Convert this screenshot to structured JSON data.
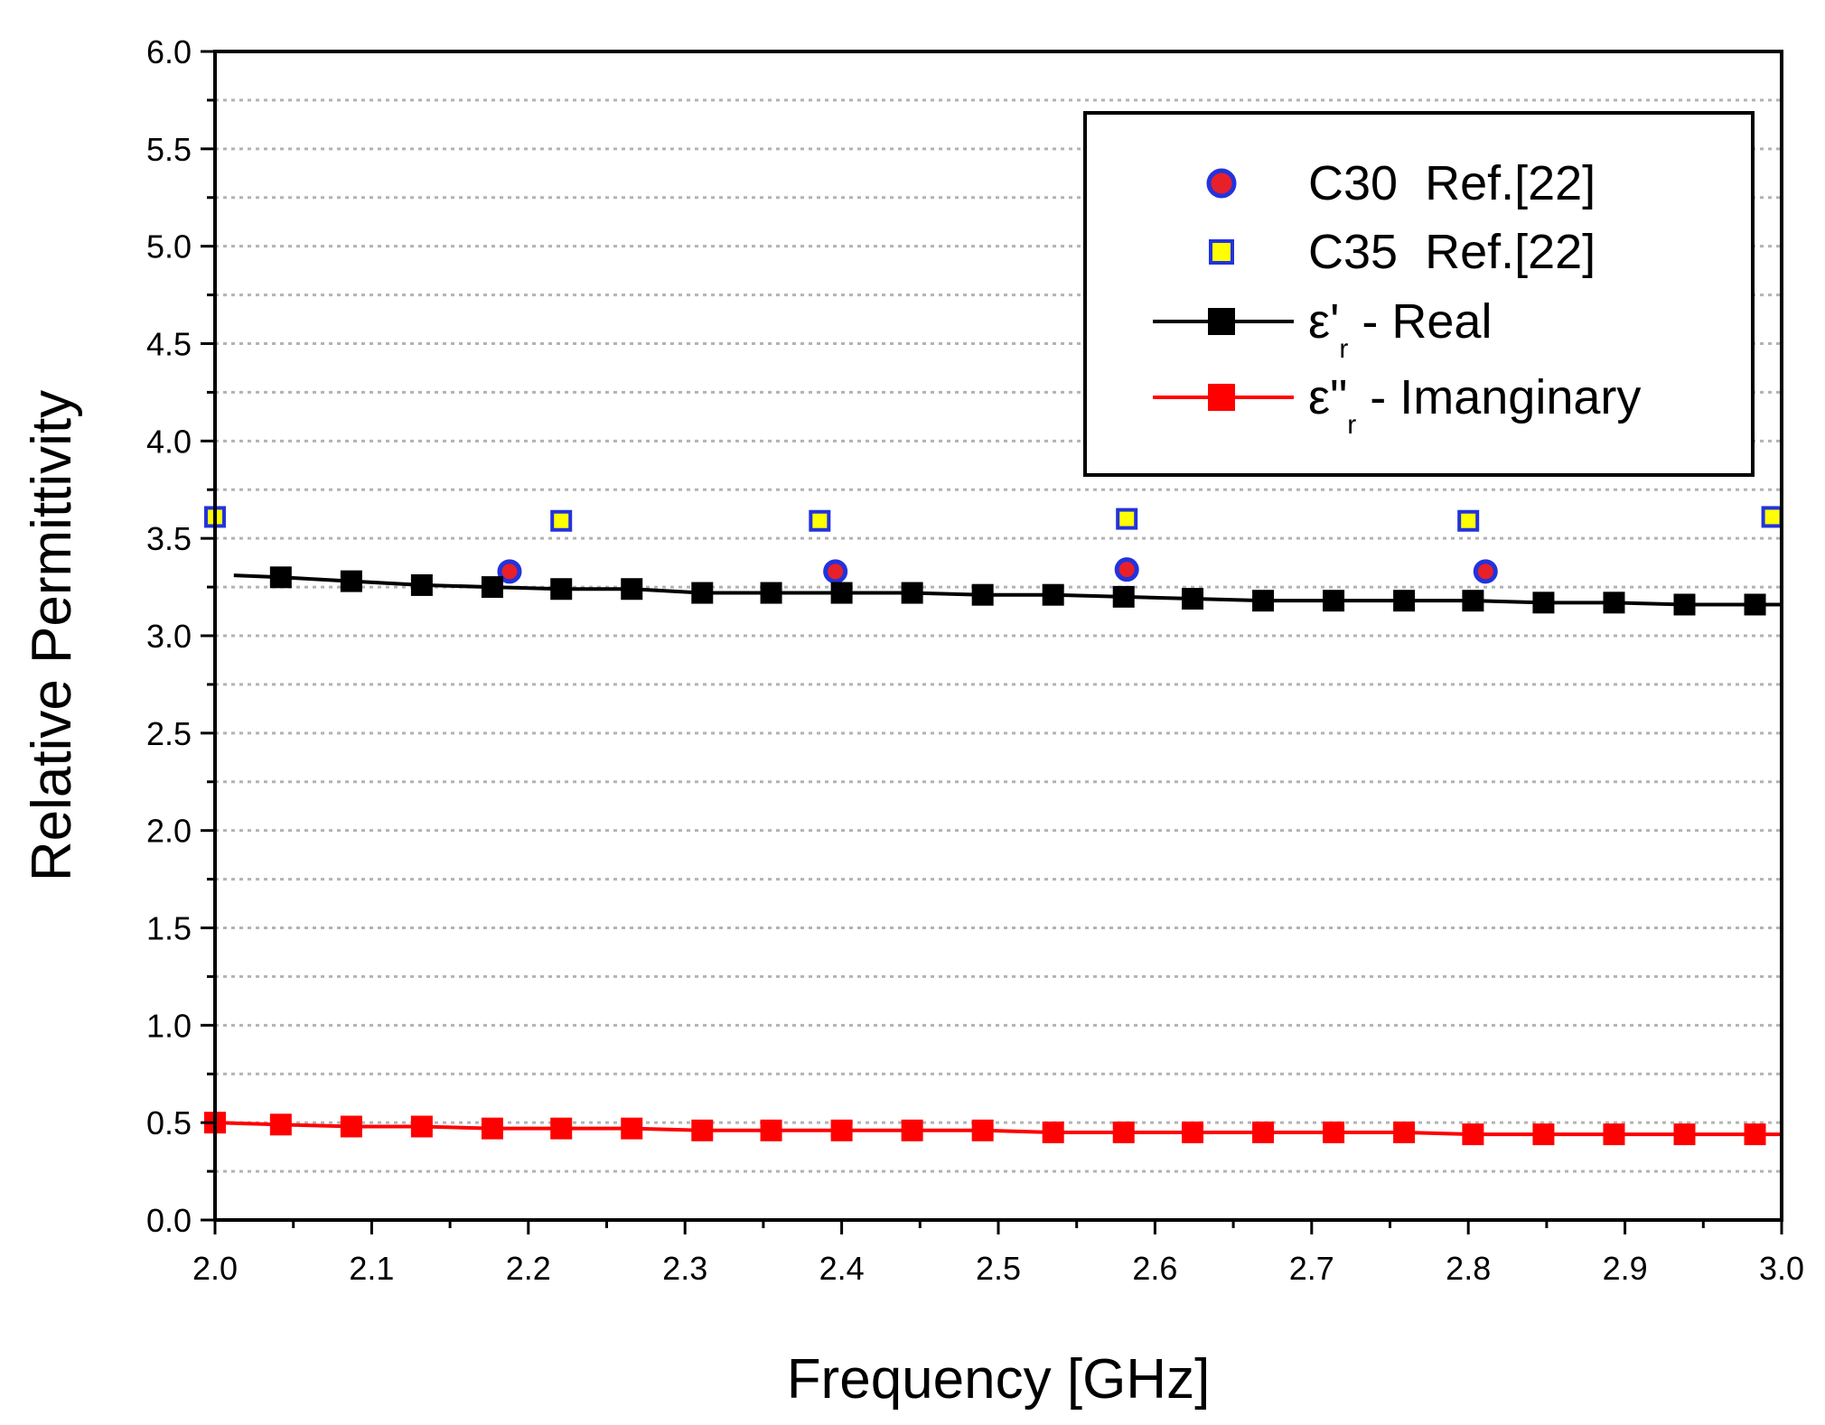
{
  "chart_data": {
    "type": "line",
    "title": "",
    "xlabel": "Frequency [GHz]",
    "ylabel": "Relative Permittivity",
    "xlim": [
      2.0,
      3.0
    ],
    "ylim": [
      0.0,
      6.0
    ],
    "xticks": [
      "2.0",
      "2.1",
      "2.2",
      "2.3",
      "2.4",
      "2.5",
      "2.6",
      "2.7",
      "2.8",
      "2.9",
      "3.0"
    ],
    "yticks": [
      "0.0",
      "0.5",
      "1.0",
      "1.5",
      "2.0",
      "2.5",
      "3.0",
      "3.5",
      "4.0",
      "4.5",
      "5.0",
      "5.5",
      "6.0"
    ],
    "grid": "horizontal dotted",
    "legend_position": "top-right",
    "series": [
      {
        "name": "C30  Ref.[22]",
        "kind": "scatter",
        "marker": "circle",
        "color": "#e8202a",
        "edge": "#2233dd",
        "x": [
          2.188,
          2.396,
          2.582,
          2.811
        ],
        "y": [
          3.33,
          3.33,
          3.34,
          3.33
        ]
      },
      {
        "name": "C35  Ref.[22]",
        "kind": "scatter",
        "marker": "square",
        "color": "#ffff00",
        "edge": "#2233dd",
        "x": [
          2.0,
          2.221,
          2.386,
          2.582,
          2.8,
          2.994
        ],
        "y": [
          3.61,
          3.59,
          3.59,
          3.6,
          3.59,
          3.61
        ]
      },
      {
        "name": "ε'r - Real",
        "label_main": "ε'",
        "label_sub": "r",
        "label_rest": " - Real",
        "kind": "line",
        "marker": "square",
        "color": "#000000",
        "x": [
          2.012,
          2.042,
          2.087,
          2.132,
          2.177,
          2.221,
          2.266,
          2.311,
          2.355,
          2.4,
          2.445,
          2.49,
          2.535,
          2.58,
          2.624,
          2.669,
          2.714,
          2.759,
          2.803,
          2.848,
          2.893,
          2.938,
          2.983,
          3.0
        ],
        "y": [
          3.31,
          3.3,
          3.28,
          3.26,
          3.25,
          3.24,
          3.24,
          3.22,
          3.22,
          3.22,
          3.22,
          3.21,
          3.21,
          3.2,
          3.19,
          3.18,
          3.18,
          3.18,
          3.18,
          3.17,
          3.17,
          3.16,
          3.16,
          3.16
        ]
      },
      {
        "name": "ε\"r - Imanginary",
        "label_main": "ε\"",
        "label_sub": "r",
        "label_rest": " - Imanginary",
        "kind": "line",
        "marker": "square",
        "color": "#ff0000",
        "x": [
          2.0,
          2.042,
          2.087,
          2.132,
          2.177,
          2.221,
          2.266,
          2.311,
          2.355,
          2.4,
          2.445,
          2.49,
          2.535,
          2.58,
          2.624,
          2.669,
          2.714,
          2.759,
          2.803,
          2.848,
          2.893,
          2.938,
          2.983,
          3.0
        ],
        "y": [
          0.5,
          0.49,
          0.48,
          0.48,
          0.47,
          0.47,
          0.47,
          0.46,
          0.46,
          0.46,
          0.46,
          0.46,
          0.45,
          0.45,
          0.45,
          0.45,
          0.45,
          0.45,
          0.44,
          0.44,
          0.44,
          0.44,
          0.44,
          0.44
        ]
      }
    ]
  }
}
